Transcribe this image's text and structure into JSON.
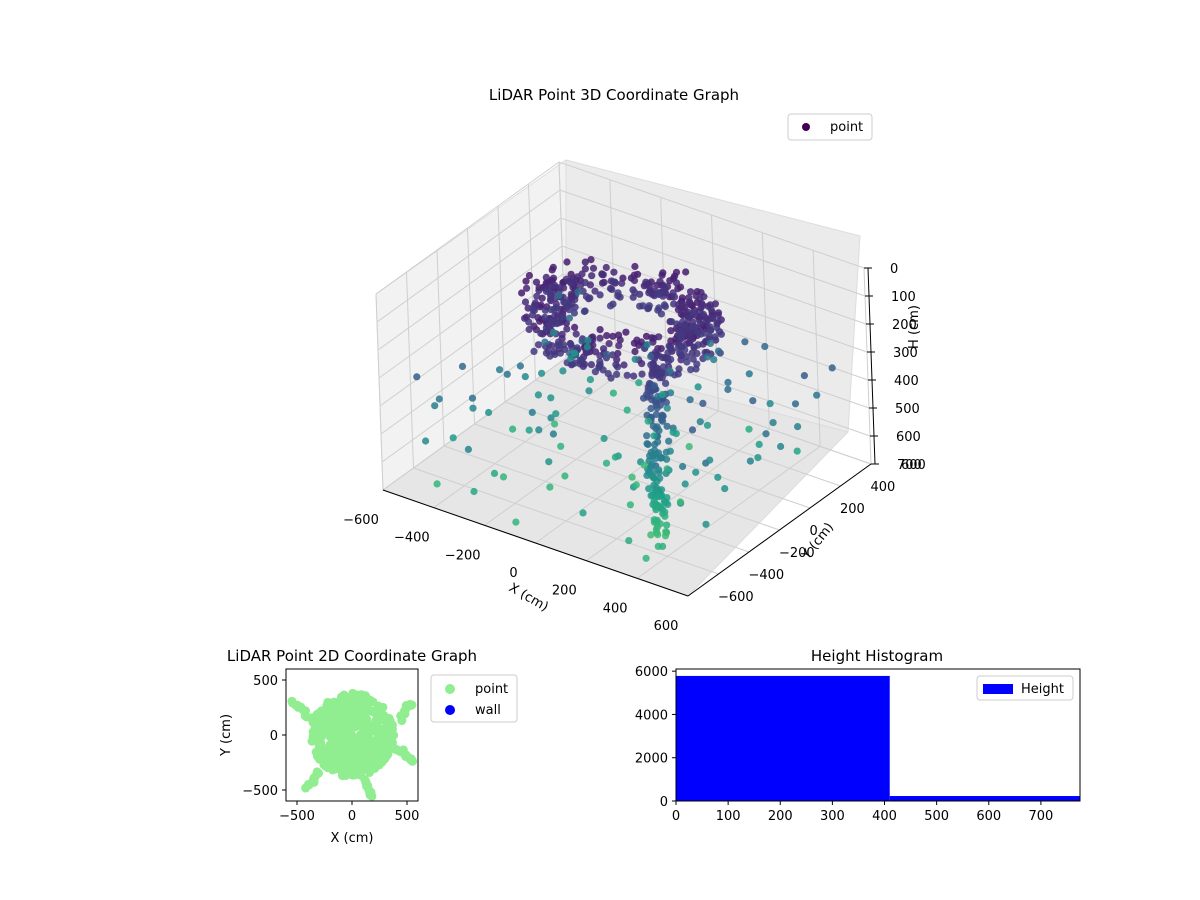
{
  "chart_data": [
    {
      "type": "scatter",
      "projection": "3d",
      "title": "LiDAR Point 3D Coordinate Graph",
      "xlabel": "X (cm)",
      "ylabel": "Y (cm)",
      "zlabel": "H (cm)",
      "xlim": [
        -600,
        600
      ],
      "ylim": [
        -600,
        600
      ],
      "zlim": [
        0,
        700
      ],
      "z_inverted": true,
      "xticks": [
        -600,
        -400,
        -200,
        0,
        200,
        400,
        600
      ],
      "yticks": [
        -600,
        -400,
        -200,
        0,
        200,
        400,
        600
      ],
      "zticks": [
        0,
        100,
        200,
        300,
        400,
        500,
        600,
        700
      ],
      "grid": true,
      "colormap": "viridis",
      "legend": {
        "position": "top-right",
        "entries": [
          {
            "name": "point",
            "color": "#440154"
          }
        ]
      },
      "series": [
        {
          "name": "point",
          "description_points": "ring-shaped dense cluster near top plus vertical column and scattered points below",
          "ring": {
            "center": [
              0,
              0
            ],
            "radius": 350,
            "h_range": [
              80,
              200
            ]
          },
          "column": {
            "center": [
              250,
              -200
            ],
            "h_range": [
              150,
              760
            ]
          },
          "scatter": [
            [
              -500,
              -300,
              600
            ],
            [
              -450,
              200,
              550
            ],
            [
              -300,
              -500,
              650
            ],
            [
              -200,
              400,
              500
            ],
            [
              100,
              -450,
              620
            ],
            [
              300,
              450,
              520
            ],
            [
              450,
              -100,
              560
            ],
            [
              500,
              300,
              480
            ],
            [
              -400,
              -100,
              420
            ],
            [
              -100,
              -300,
              460
            ],
            [
              200,
              100,
              400
            ],
            [
              350,
              -350,
              700
            ],
            [
              -250,
              100,
              380
            ],
            [
              0,
              300,
              440
            ],
            [
              150,
              -150,
              540
            ],
            [
              -350,
              350,
              600
            ],
            [
              420,
              420,
              640
            ],
            [
              -150,
              -480,
              720
            ],
            [
              260,
              -420,
              680
            ],
            [
              -480,
              50,
              700
            ]
          ]
        }
      ]
    },
    {
      "type": "scatter",
      "title": "LiDAR Point 2D Coordinate Graph",
      "xlabel": "X (cm)",
      "ylabel": "Y (cm)",
      "xlim": [
        -600,
        600
      ],
      "ylim": [
        -600,
        600
      ],
      "xticks": [
        -500,
        0,
        500
      ],
      "yticks": [
        -500,
        0,
        500
      ],
      "legend": {
        "position": "outside-right",
        "entries": [
          {
            "name": "point",
            "color": "#90ee90"
          },
          {
            "name": "wall",
            "color": "#0000ff"
          }
        ]
      },
      "series": [
        {
          "name": "point",
          "color": "#90ee90",
          "blob": {
            "center": [
              0,
              0
            ],
            "radius": 380
          },
          "arms": [
            [
              [
                -550,
                300
              ],
              [
                -450,
                250
              ],
              [
                -380,
                150
              ],
              [
                -300,
                50
              ]
            ],
            [
              [
                380,
                -100
              ],
              [
                450,
                -150
              ],
              [
                520,
                -200
              ],
              [
                580,
                -250
              ]
            ],
            [
              [
                100,
                -400
              ],
              [
                150,
                -480
              ],
              [
                200,
                -560
              ]
            ],
            [
              [
                -300,
                -350
              ],
              [
                -350,
                -420
              ],
              [
                -420,
                -500
              ]
            ],
            [
              [
                450,
                150
              ],
              [
                500,
                250
              ],
              [
                560,
                300
              ]
            ]
          ]
        },
        {
          "name": "wall",
          "color": "#0000ff",
          "points": []
        }
      ]
    },
    {
      "type": "bar",
      "title": "Height Histogram",
      "xlabel": "",
      "ylabel": "",
      "xlim": [
        0,
        775
      ],
      "ylim": [
        0,
        6100
      ],
      "xticks": [
        0,
        100,
        200,
        300,
        400,
        500,
        600,
        700
      ],
      "yticks": [
        0,
        2000,
        4000,
        6000
      ],
      "bins": [
        {
          "x0": 0,
          "x1": 410,
          "count": 5780
        },
        {
          "x0": 410,
          "x1": 775,
          "count": 230
        }
      ],
      "color": "#0000ff",
      "legend": {
        "position": "top-right",
        "entries": [
          {
            "name": "Height",
            "color": "#0000ff"
          }
        ]
      }
    }
  ]
}
